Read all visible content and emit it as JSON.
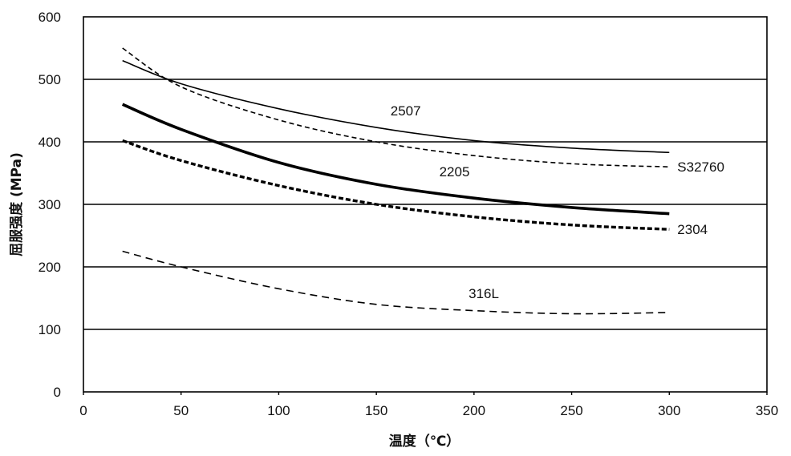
{
  "chart_data": {
    "type": "line",
    "xlabel": "温度（℃）",
    "ylabel": "屈服强度 (MPa)",
    "xlim": [
      0,
      350
    ],
    "ylim": [
      0,
      600
    ],
    "xticks": [
      0,
      50,
      100,
      150,
      200,
      250,
      300,
      350
    ],
    "yticks": [
      0,
      100,
      200,
      300,
      400,
      500,
      600
    ],
    "grid": "horizontal",
    "series": [
      {
        "name": "2507",
        "line_style": "solid-thin",
        "x": [
          20,
          50,
          100,
          150,
          200,
          250,
          300
        ],
        "y": [
          530,
          493,
          453,
          423,
          402,
          390,
          383
        ]
      },
      {
        "name": "S32760",
        "line_style": "dashed-short",
        "x": [
          20,
          50,
          100,
          150,
          200,
          250,
          300
        ],
        "y": [
          550,
          488,
          435,
          400,
          378,
          365,
          360
        ]
      },
      {
        "name": "2205",
        "line_style": "solid-thick",
        "x": [
          20,
          50,
          100,
          150,
          200,
          250,
          300
        ],
        "y": [
          460,
          420,
          367,
          332,
          310,
          295,
          285
        ]
      },
      {
        "name": "2304",
        "line_style": "dashed-thick",
        "x": [
          20,
          50,
          100,
          150,
          200,
          250,
          300
        ],
        "y": [
          402,
          370,
          330,
          300,
          280,
          267,
          260
        ]
      },
      {
        "name": "316L",
        "line_style": "dashed-long",
        "x": [
          20,
          50,
          100,
          150,
          200,
          250,
          300
        ],
        "y": [
          225,
          200,
          165,
          140,
          130,
          125,
          127
        ]
      }
    ]
  }
}
